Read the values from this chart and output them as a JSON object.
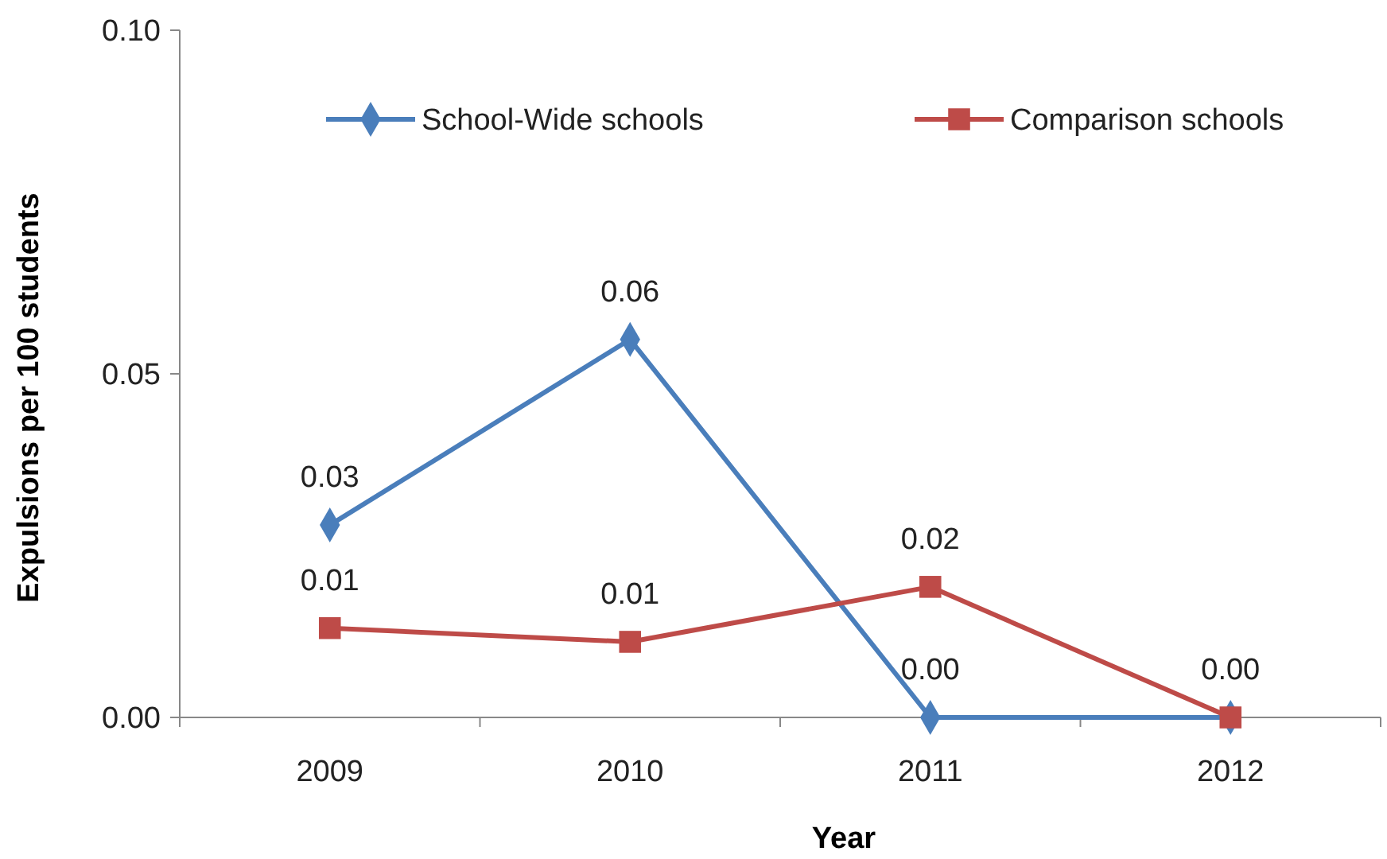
{
  "chart_data": {
    "type": "line",
    "xlabel": "Year",
    "ylabel": "Expulsions per 100 students",
    "categories": [
      "2009",
      "2010",
      "2011",
      "2012"
    ],
    "ylim": [
      0,
      0.1
    ],
    "yticks": [
      {
        "value": 0,
        "label": "0.00"
      },
      {
        "value": 0.05,
        "label": "0.05"
      },
      {
        "value": 0.1,
        "label": "0.10"
      }
    ],
    "grid": false,
    "legend": "top",
    "series": [
      {
        "name": "School-Wide schools",
        "color": "#4a7ebb",
        "marker": "diamond",
        "values": [
          0.028,
          0.055,
          0,
          0
        ],
        "value_labels": [
          "0.03",
          "0.06",
          "0.00",
          null
        ]
      },
      {
        "name": "Comparison schools",
        "color": "#be4b48",
        "marker": "square",
        "values": [
          0.013,
          0.011,
          0.019,
          0
        ],
        "value_labels": [
          "0.01",
          "0.01",
          "0.02",
          "0.00"
        ]
      }
    ]
  }
}
